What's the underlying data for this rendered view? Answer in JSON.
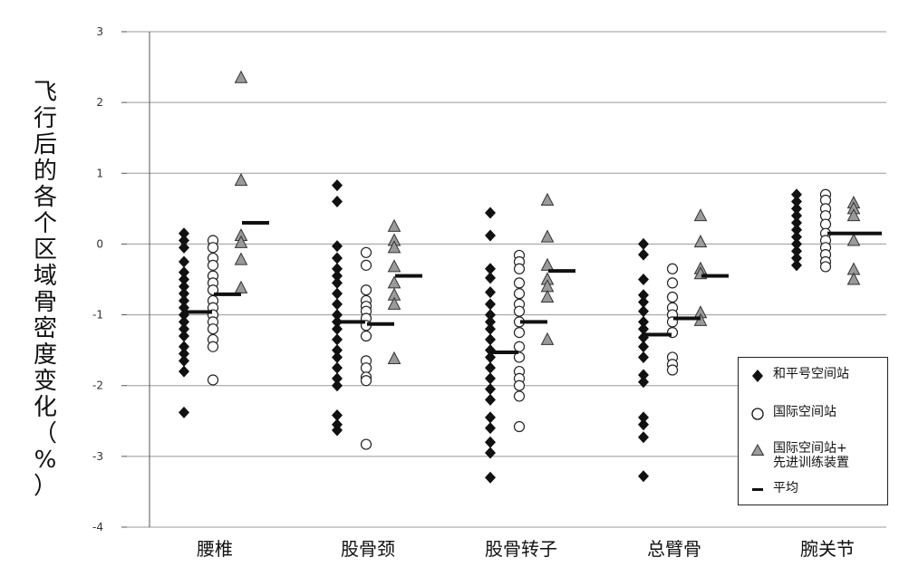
{
  "chart_data": {
    "type": "scatter",
    "ylabel": "飞行后的各个区域骨密度变化（%）",
    "ylim": [
      -4,
      3
    ],
    "yticks": [
      "3",
      "2",
      "1",
      "0",
      "-1",
      "-2",
      "-3",
      "-4"
    ],
    "categories": [
      "腰椎",
      "股骨颈",
      "股骨转子",
      "总臂骨",
      "腕关节"
    ],
    "grid": true,
    "legend_position": "bottom-right",
    "series": [
      {
        "name": "和平号空间站",
        "marker": "diamond",
        "color": "#111111",
        "values": [
          [
            0.15,
            0.05,
            -0.05,
            -0.25,
            -0.4,
            -0.5,
            -0.6,
            -0.7,
            -0.8,
            -0.9,
            -1.0,
            -1.1,
            -1.2,
            -1.3,
            -1.45,
            -1.55,
            -1.65,
            -1.8,
            -2.38
          ],
          [
            0.83,
            0.6,
            -0.03,
            -0.2,
            -0.35,
            -0.45,
            -0.55,
            -0.7,
            -0.85,
            -1.0,
            -1.1,
            -1.2,
            -1.35,
            -1.5,
            -1.6,
            -1.75,
            -1.9,
            -2.0,
            -2.42,
            -2.55,
            -2.63
          ],
          [
            0.44,
            0.12,
            -0.35,
            -0.48,
            -0.68,
            -0.85,
            -1.0,
            -1.1,
            -1.2,
            -1.35,
            -1.5,
            -1.6,
            -1.75,
            -1.9,
            -2.05,
            -2.2,
            -2.45,
            -2.6,
            -2.8,
            -2.95,
            -3.3
          ],
          [
            0.0,
            -0.15,
            -0.5,
            -0.72,
            -0.82,
            -0.95,
            -1.1,
            -1.2,
            -1.32,
            -1.45,
            -1.6,
            -1.85,
            -1.95,
            -2.45,
            -2.55,
            -2.73,
            -3.28
          ],
          [
            -0.3,
            -0.2,
            -0.1,
            0.0,
            0.1,
            0.2,
            0.3,
            0.4,
            0.5,
            0.6,
            0.7
          ]
        ]
      },
      {
        "name": "国际空间站",
        "marker": "circle",
        "color": "#ffffff",
        "values": [
          [
            0.05,
            -0.05,
            -0.2,
            -0.3,
            -0.45,
            -0.55,
            -0.65,
            -0.8,
            -0.9,
            -1.0,
            -1.1,
            -1.2,
            -1.35,
            -1.45,
            -1.92
          ],
          [
            -0.12,
            -0.3,
            -0.65,
            -0.8,
            -0.88,
            -0.95,
            -1.05,
            -1.15,
            -1.3,
            -1.65,
            -1.75,
            -1.88,
            -1.93,
            -2.83
          ],
          [
            -0.16,
            -0.25,
            -0.35,
            -0.55,
            -0.7,
            -0.85,
            -0.95,
            -1.1,
            -1.25,
            -1.45,
            -1.6,
            -1.8,
            -1.9,
            -2.0,
            -2.15,
            -2.58
          ],
          [
            -0.35,
            -0.55,
            -0.75,
            -0.9,
            -1.0,
            -1.1,
            -1.25,
            -1.6,
            -1.7,
            -1.78
          ],
          [
            0.7,
            0.62,
            0.5,
            0.4,
            0.28,
            0.15,
            0.05,
            -0.05,
            -0.15,
            -0.25,
            -0.32
          ]
        ]
      },
      {
        "name": "国际空间站+先进训练装置",
        "marker": "triangle",
        "color": "#9a9a9a",
        "values": [
          [
            2.35,
            0.9,
            0.12,
            0.02,
            -0.22,
            -0.62
          ],
          [
            0.25,
            0.05,
            -0.05,
            -0.32,
            -0.55,
            -0.72,
            -0.85,
            -1.62
          ],
          [
            0.62,
            0.1,
            -0.3,
            -0.5,
            -0.6,
            -0.75,
            -1.35
          ],
          [
            0.4,
            0.03,
            -0.35,
            -0.42,
            -0.97,
            -1.08
          ],
          [
            0.58,
            0.5,
            0.4,
            0.05,
            -0.36,
            -0.5
          ]
        ]
      }
    ],
    "means": {
      "name": "平均",
      "values": [
        [
          -0.96,
          -0.71,
          0.3
        ],
        [
          -1.1,
          -1.13,
          -0.45
        ],
        [
          -1.53,
          -1.1,
          -0.38
        ],
        [
          -1.28,
          -1.05,
          -0.45
        ],
        [
          0.15,
          0.15
        ]
      ]
    }
  },
  "legend": {
    "items": [
      {
        "symbol": "diamond",
        "lines": [
          "和平号空间站"
        ]
      },
      {
        "symbol": "circle",
        "lines": [
          "国际空间站"
        ]
      },
      {
        "symbol": "triangle",
        "lines": [
          "国际空间站+",
          "先进训练装置"
        ]
      },
      {
        "symbol": "dash",
        "lines": [
          "平均"
        ]
      }
    ]
  },
  "colors": {
    "diamond": "#111111",
    "circle_fill": "#ffffff",
    "triangle": "#9a9a9a",
    "grid": "#999999",
    "axis": "#555555",
    "mean": "#111111"
  }
}
